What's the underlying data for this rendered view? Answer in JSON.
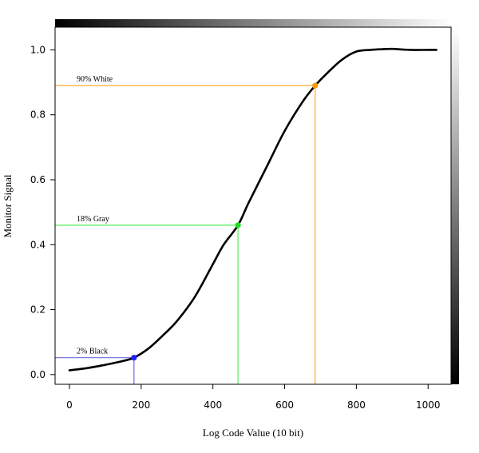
{
  "chart_data": {
    "type": "line",
    "title": "",
    "xlabel": "Log Code Value (10 bit)",
    "ylabel": "Monitor Signal",
    "xlim": [
      -40,
      1064
    ],
    "ylim": [
      -0.03,
      1.07
    ],
    "xticks": [
      0,
      200,
      400,
      600,
      800,
      1000
    ],
    "yticks": [
      0.0,
      0.2,
      0.4,
      0.6,
      0.8,
      1.0
    ],
    "grid": false,
    "legend": "none",
    "series": [
      {
        "name": "",
        "color": "#000000",
        "x": [
          0,
          50,
          100,
          150,
          180,
          220,
          260,
          300,
          350,
          400,
          430,
          470,
          500,
          550,
          600,
          650,
          685,
          720,
          760,
          800,
          840,
          870,
          900,
          950,
          1000,
          1023
        ],
        "y": [
          0.013,
          0.02,
          0.03,
          0.042,
          0.052,
          0.08,
          0.12,
          0.165,
          0.24,
          0.34,
          0.4,
          0.46,
          0.53,
          0.64,
          0.75,
          0.84,
          0.89,
          0.93,
          0.97,
          0.995,
          1.0,
          1.002,
          1.003,
          1.0,
          1.0,
          1.0
        ]
      }
    ],
    "markers": [
      {
        "label": "2% Black",
        "x": 180,
        "y": 0.052,
        "color": "#2020ff",
        "line_color": "#6a6adf"
      },
      {
        "label": "18% Gray",
        "x": 470,
        "y": 0.46,
        "color": "#22dd22",
        "line_color": "#55ee55"
      },
      {
        "label": "90% White",
        "x": 685,
        "y": 0.89,
        "color": "#ff9900",
        "line_color": "#ffaa33"
      }
    ],
    "gradients": {
      "top": {
        "from": "#000000",
        "to": "#ffffff",
        "direction": "left-to-right"
      },
      "right": {
        "from": "#ffffff",
        "to": "#000000",
        "direction": "top-to-bottom"
      }
    }
  }
}
